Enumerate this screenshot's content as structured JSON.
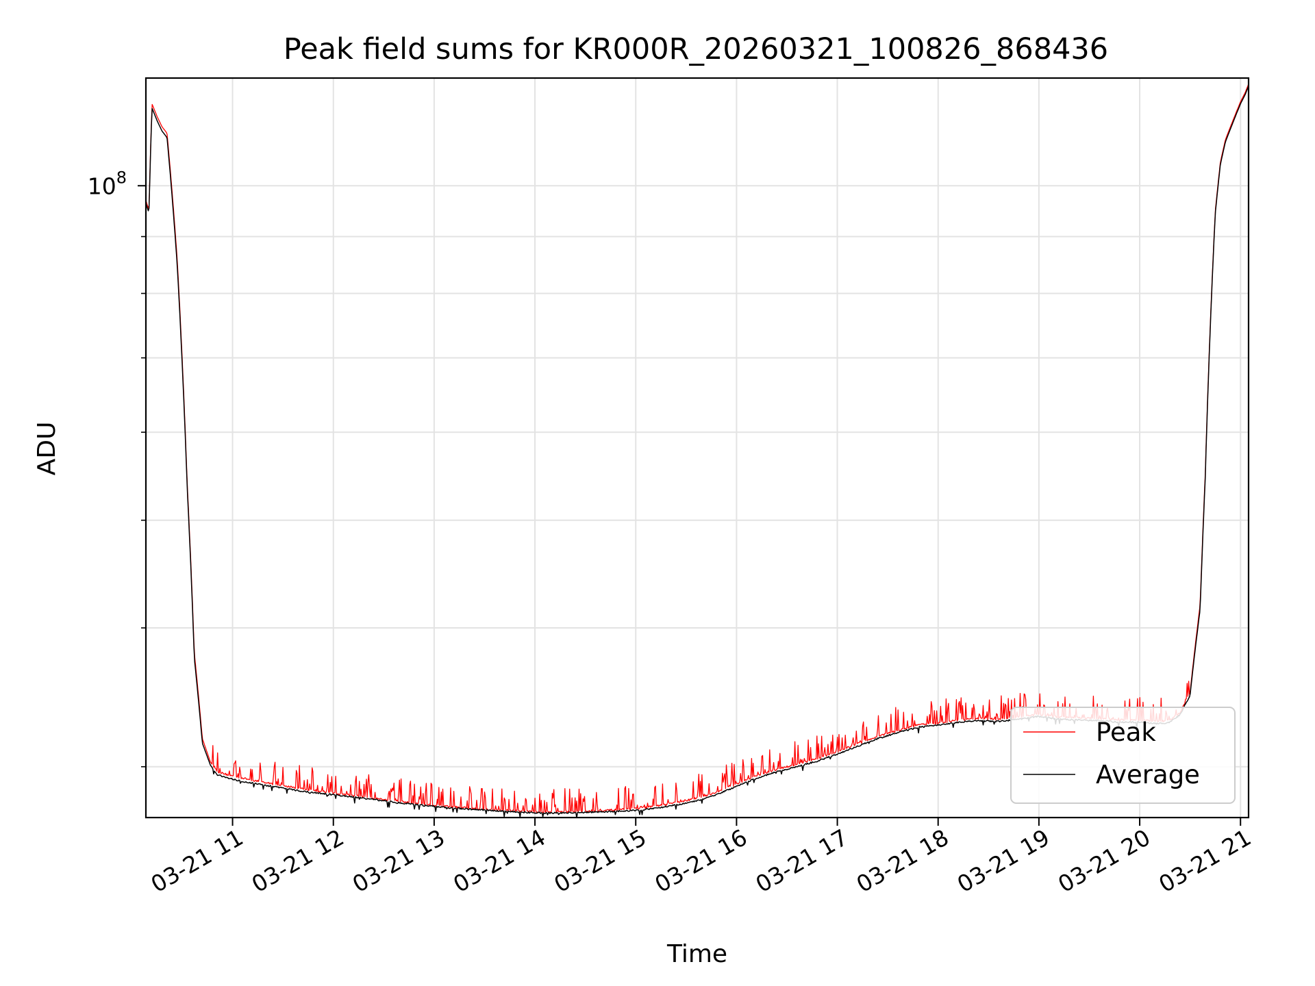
{
  "chart_data": {
    "type": "line",
    "title": "Peak field sums for KR000R_20260321_100826_868436",
    "xlabel": "Time",
    "ylabel": "ADU",
    "yscale": "log",
    "grid": true,
    "legend_position": "lower-right",
    "x_unit": "hours of day 2026-03-21",
    "xlim": [
      10.14,
      21.08
    ],
    "ylim": [
      27000000,
      125000000
    ],
    "x_ticks": [
      11,
      12,
      13,
      14,
      15,
      16,
      17,
      18,
      19,
      20,
      21
    ],
    "x_tick_labels": [
      "03-21 11",
      "03-21 12",
      "03-21 13",
      "03-21 14",
      "03-21 15",
      "03-21 16",
      "03-21 17",
      "03-21 18",
      "03-21 19",
      "03-21 20",
      "03-21 21"
    ],
    "y_major_ticks": [
      {
        "value": 100000000,
        "base": "10",
        "exp": "8"
      }
    ],
    "y_minor_ticks": [
      30000000,
      40000000,
      50000000,
      60000000,
      70000000,
      80000000,
      90000000
    ],
    "colors": {
      "peak": "#ff0000",
      "average": "#000000"
    },
    "series": [
      {
        "name": "Peak",
        "color": "#ff0000",
        "x": [
          10.14,
          10.17,
          10.2,
          10.25,
          10.3,
          10.35,
          10.45,
          10.55,
          10.62,
          10.7,
          10.78,
          10.85,
          10.95,
          11.1,
          11.3,
          11.5,
          11.7,
          12.0,
          12.3,
          12.6,
          12.9,
          13.2,
          13.5,
          13.8,
          14.0,
          14.2,
          14.4,
          14.6,
          14.8,
          15.0,
          15.2,
          15.4,
          15.6,
          15.8,
          16.0,
          16.2,
          16.4,
          16.6,
          16.8,
          17.0,
          17.2,
          17.4,
          17.6,
          17.8,
          18.0,
          18.2,
          18.4,
          18.6,
          18.8,
          19.0,
          19.2,
          19.4,
          19.6,
          19.8,
          20.0,
          20.2,
          20.3,
          20.4,
          20.5,
          20.6,
          20.65,
          20.7,
          20.75,
          20.8,
          20.85,
          20.9,
          20.95,
          21.0,
          21.05,
          21.08
        ],
        "y": [
          97000000,
          95000000,
          118500000,
          115500000,
          113000000,
          111500000,
          86000000,
          54000000,
          38000000,
          31800000,
          30300000,
          29700000,
          29500000,
          29300000,
          29050000,
          28850000,
          28650000,
          28400000,
          28200000,
          27950000,
          27750000,
          27600000,
          27480000,
          27380000,
          27330000,
          27320000,
          27340000,
          27380000,
          27430000,
          27500000,
          27650000,
          27850000,
          28100000,
          28450000,
          28950000,
          29450000,
          29850000,
          30150000,
          30500000,
          30950000,
          31450000,
          31950000,
          32350000,
          32700000,
          32850000,
          33050000,
          33150000,
          33100000,
          33250000,
          33450000,
          33250000,
          33200000,
          33150000,
          33050000,
          33050000,
          32950000,
          33050000,
          33550000,
          35000000,
          42000000,
          55000000,
          75000000,
          95000000,
          105000000,
          110000000,
          113000000,
          116000000,
          119000000,
          121500000,
          123500000
        ]
      },
      {
        "name": "Average",
        "color": "#000000",
        "x": [
          10.14,
          10.17,
          10.2,
          10.25,
          10.3,
          10.35,
          10.45,
          10.55,
          10.62,
          10.7,
          10.78,
          10.85,
          10.95,
          11.1,
          11.3,
          11.5,
          11.7,
          12.0,
          12.3,
          12.6,
          12.9,
          13.2,
          13.5,
          13.8,
          14.0,
          14.2,
          14.4,
          14.6,
          14.8,
          15.0,
          15.2,
          15.4,
          15.6,
          15.8,
          16.0,
          16.2,
          16.4,
          16.6,
          16.8,
          17.0,
          17.2,
          17.4,
          17.6,
          17.8,
          18.0,
          18.2,
          18.4,
          18.6,
          18.8,
          19.0,
          19.2,
          19.4,
          19.6,
          19.8,
          20.0,
          20.2,
          20.3,
          20.4,
          20.5,
          20.6,
          20.65,
          20.7,
          20.75,
          20.8,
          20.85,
          20.9,
          20.95,
          21.0,
          21.05,
          21.08
        ],
        "y": [
          96500000,
          94500000,
          117500000,
          114500000,
          112000000,
          110500000,
          85000000,
          53500000,
          37600000,
          31500000,
          30100000,
          29500000,
          29300000,
          29100000,
          28900000,
          28700000,
          28500000,
          28300000,
          28100000,
          27880000,
          27680000,
          27530000,
          27420000,
          27320000,
          27270000,
          27260000,
          27280000,
          27310000,
          27350000,
          27400000,
          27530000,
          27710000,
          27950000,
          28300000,
          28800000,
          29300000,
          29700000,
          30000000,
          30350000,
          30800000,
          31300000,
          31800000,
          32200000,
          32550000,
          32700000,
          32900000,
          33000000,
          32950000,
          33100000,
          33300000,
          33100000,
          33050000,
          33000000,
          32900000,
          32900000,
          32800000,
          32900000,
          33400000,
          34800000,
          41600000,
          54500000,
          74500000,
          94500000,
          104500000,
          109500000,
          112500000,
          115500000,
          118500000,
          121000000,
          123000000
        ]
      }
    ]
  }
}
